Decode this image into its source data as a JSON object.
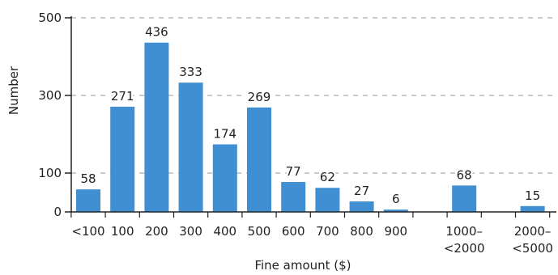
{
  "chart_data": {
    "type": "bar",
    "title": "",
    "xlabel": "Fine amount ($)",
    "ylabel": "Number",
    "ylim": [
      0,
      500
    ],
    "yticks": [
      0,
      100,
      300,
      500
    ],
    "grid": true,
    "bar_color": "#3f8fd2",
    "categories": [
      [
        "<100"
      ],
      [
        "100"
      ],
      [
        "200"
      ],
      [
        "300"
      ],
      [
        "400"
      ],
      [
        "500"
      ],
      [
        "600"
      ],
      [
        "700"
      ],
      [
        "800"
      ],
      [
        "900"
      ],
      [
        ""
      ],
      [
        "1000–",
        "<2000"
      ],
      [
        ""
      ],
      [
        "2000–",
        "<5000"
      ]
    ],
    "values": [
      58,
      271,
      436,
      333,
      174,
      269,
      77,
      62,
      27,
      6,
      null,
      68,
      null,
      15
    ]
  }
}
